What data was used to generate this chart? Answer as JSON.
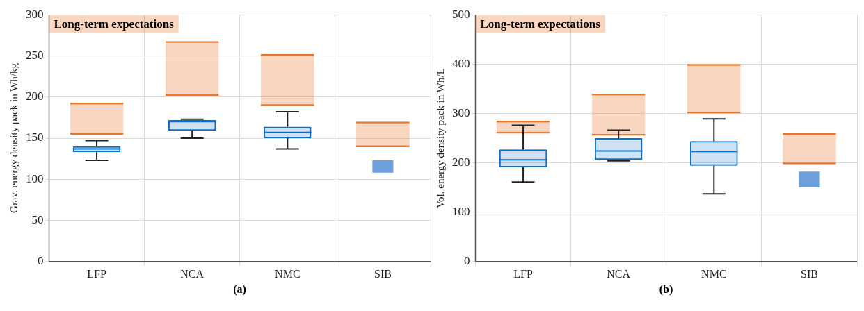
{
  "chart_data": [
    {
      "type": "box",
      "ylabel": "Grav. energy density pack in Wh/kg",
      "categories": [
        "LFP",
        "NCA",
        "NMC",
        "SIB"
      ],
      "ylim": [
        0,
        300
      ],
      "yticks": [
        0,
        50,
        100,
        150,
        200,
        250,
        300
      ],
      "grid": true,
      "legend": "top left",
      "annotations": [
        "(a)"
      ],
      "series": [
        {
          "type": "bar",
          "name": "Long-term expectations",
          "color": "#e8772e",
          "base": [
            154,
            201,
            189,
            139
          ],
          "values": [
            39,
            67,
            63,
            31
          ]
        },
        {
          "type": "bar",
          "color": "#6d9fdc",
          "base": [
            null,
            null,
            null,
            108
          ],
          "values": [
            null,
            null,
            null,
            15
          ]
        },
        {
          "type": "box",
          "color": "#0a6fc9",
          "boxes": [
            {
              "low": 123,
              "q1": 133,
              "median": 137,
              "q3": 140,
              "high": 147
            },
            {
              "low": 150,
              "q1": 159,
              "median": 170,
              "q3": 172,
              "high": 173
            },
            {
              "low": 137,
              "q1": 150,
              "median": 157,
              "q3": 164,
              "high": 182
            },
            null
          ]
        }
      ]
    },
    {
      "type": "box",
      "ylabel": "Vol. energy density pack in Wh/L",
      "categories": [
        "LFP",
        "NCA",
        "NMC",
        "SIB"
      ],
      "ylim": [
        0,
        500
      ],
      "yticks": [
        0,
        100,
        200,
        300,
        400,
        500
      ],
      "grid": true,
      "legend": "top left",
      "annotations": [
        "(b)"
      ],
      "series": [
        {
          "type": "bar",
          "name": "Long-term expectations",
          "color": "#e8772e",
          "base": [
            259,
            255,
            300,
            197
          ],
          "values": [
            26,
            85,
            100,
            63
          ]
        },
        {
          "type": "bar",
          "color": "#6d9fdc",
          "base": [
            null,
            null,
            null,
            150
          ],
          "values": [
            null,
            null,
            null,
            32
          ]
        },
        {
          "type": "box",
          "color": "#0a6fc9",
          "boxes": [
            {
              "low": 161,
              "q1": 191,
              "median": 206,
              "q3": 227,
              "high": 276
            },
            {
              "low": 204,
              "q1": 206,
              "median": 224,
              "q3": 250,
              "high": 266
            },
            {
              "low": 137,
              "q1": 194,
              "median": 223,
              "q3": 244,
              "high": 289
            },
            null
          ]
        }
      ]
    }
  ]
}
